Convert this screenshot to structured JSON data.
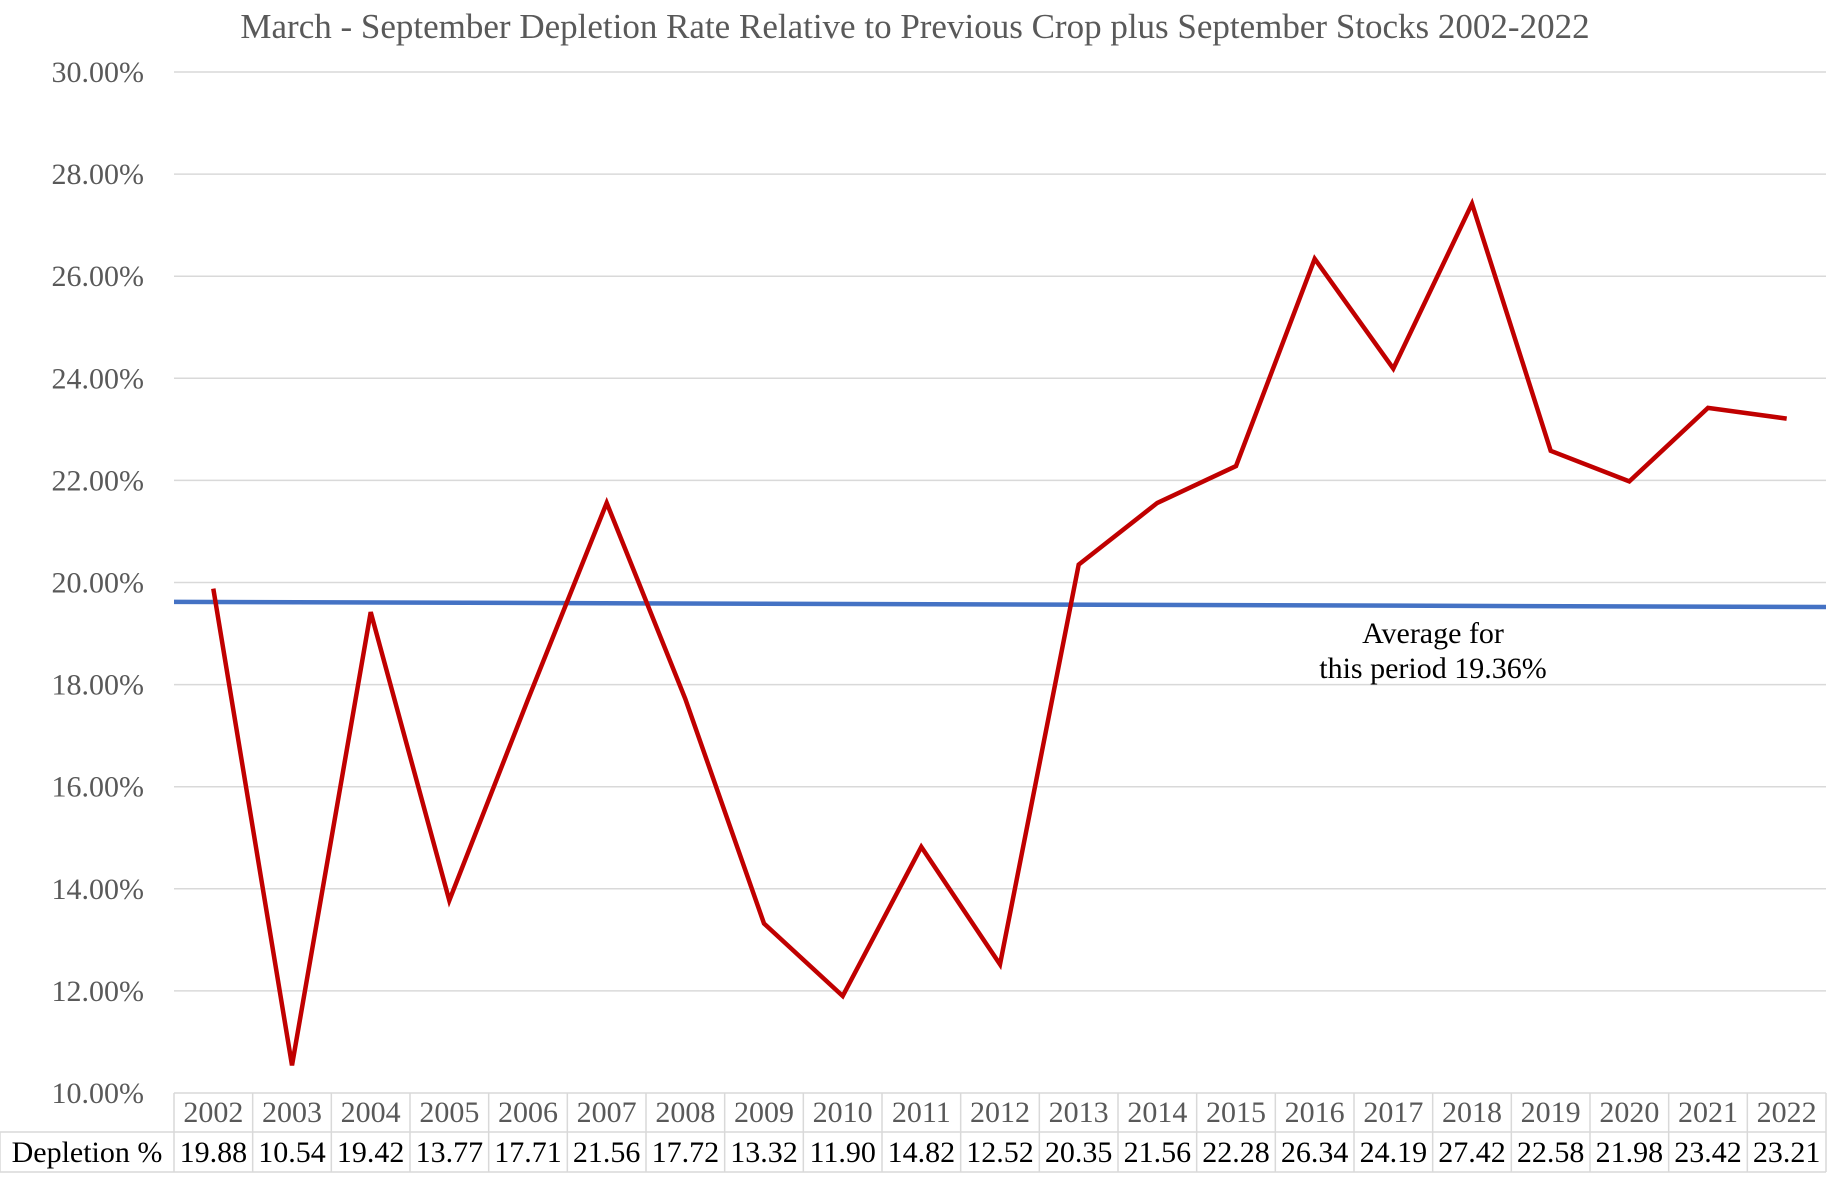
{
  "chart_data": {
    "type": "line",
    "title": "March - September Depletion Rate Relative to Previous Crop plus September Stocks 2002-2022",
    "categories": [
      "2002",
      "2003",
      "2004",
      "2005",
      "2006",
      "2007",
      "2008",
      "2009",
      "2010",
      "2011",
      "2012",
      "2013",
      "2014",
      "2015",
      "2016",
      "2017",
      "2018",
      "2019",
      "2020",
      "2021",
      "2022"
    ],
    "series": [
      {
        "name": "Depletion %",
        "color": "#C00000",
        "values": [
          19.88,
          10.54,
          19.42,
          13.77,
          17.71,
          21.56,
          17.72,
          13.32,
          11.9,
          14.82,
          12.52,
          20.35,
          21.56,
          22.28,
          26.34,
          24.19,
          27.42,
          22.58,
          21.98,
          23.42,
          23.21
        ],
        "labels": [
          "19.88",
          "10.54",
          "19.42",
          "13.77",
          "17.71",
          "21.56",
          "17.72",
          "13.32",
          "11.90",
          "14.82",
          "12.52",
          "20.35",
          "21.56",
          "22.28",
          "26.34",
          "24.19",
          "27.42",
          "22.58",
          "21.98",
          "23.42",
          "23.21"
        ]
      }
    ],
    "average": {
      "value": 19.36,
      "color": "#4472C4",
      "start": 19.62,
      "end": 19.52
    },
    "annotation": {
      "line1": "Average for",
      "line2": "this period 19.36%"
    },
    "ylim": [
      10,
      30
    ],
    "yticks": [
      10,
      12,
      14,
      16,
      18,
      20,
      22,
      24,
      26,
      28,
      30
    ],
    "ytick_labels": [
      "10.00%",
      "12.00%",
      "14.00%",
      "16.00%",
      "18.00%",
      "20.00%",
      "22.00%",
      "24.00%",
      "26.00%",
      "28.00%",
      "30.00%"
    ],
    "grid": true,
    "legend": "data-table",
    "xlabel": "",
    "ylabel": ""
  }
}
